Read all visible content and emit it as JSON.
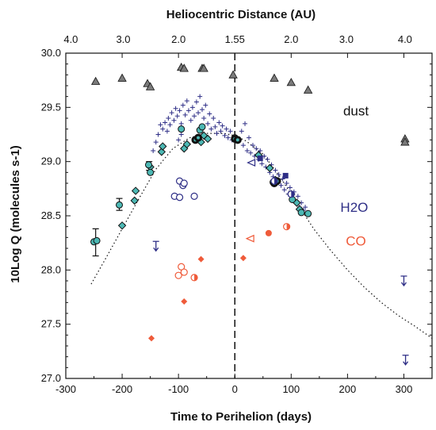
{
  "chart_data": {
    "type": "scatter",
    "xlabel": "Time to Perihelion (days)",
    "ylabel": "10Log Q (molecules s-1)",
    "top_xlabel": "Heliocentric Distance (AU)",
    "xlim": [
      -300,
      350
    ],
    "ylim": [
      27.0,
      30.0
    ],
    "x_ticks": [
      "-300",
      "-200",
      "-100",
      "0",
      "100",
      "200",
      "300"
    ],
    "y_ticks": [
      "27.0",
      "27.5",
      "28.0",
      "28.5",
      "29.0",
      "29.5",
      "30.0"
    ],
    "top_ticks": [
      {
        "label": "4.0",
        "x": -291
      },
      {
        "label": "3.0",
        "x": -198
      },
      {
        "label": "2.0",
        "x": -100
      },
      {
        "label": "1.55",
        "x": 0
      },
      {
        "label": "2.0",
        "x": 100
      },
      {
        "label": "3.0",
        "x": 198
      },
      {
        "label": "4.0",
        "x": 302
      }
    ],
    "perihelion_x": 0,
    "annotations": [
      {
        "text": "dust",
        "x": 215,
        "y": 29.47,
        "color": "#111111"
      },
      {
        "text": "H2O",
        "x": 212,
        "y": 28.58,
        "color": "#2e2e86"
      },
      {
        "text": "CO",
        "x": 215,
        "y": 28.27,
        "color": "#ef5b3a"
      }
    ],
    "colors": {
      "dust": "#7a7a7a",
      "h2o": "#2e2e86",
      "co": "#ef5b3a",
      "teal": "#4cb8b4",
      "dark_blue": "#1d3f7f"
    },
    "series": [
      {
        "name": "dust",
        "marker": "triangle",
        "points": [
          {
            "x": -247,
            "y": 29.74
          },
          {
            "x": -200,
            "y": 29.77
          },
          {
            "x": -155,
            "y": 29.72
          },
          {
            "x": -150,
            "y": 29.69
          },
          {
            "x": -95,
            "y": 29.87
          },
          {
            "x": -90,
            "y": 29.86
          },
          {
            "x": -58,
            "y": 29.86
          },
          {
            "x": -55,
            "y": 29.86
          },
          {
            "x": -3,
            "y": 29.8
          },
          {
            "x": 70,
            "y": 29.77
          },
          {
            "x": 100,
            "y": 29.73
          },
          {
            "x": 130,
            "y": 29.66
          },
          {
            "x": 302,
            "y": 29.21
          },
          {
            "x": 302,
            "y": 29.18
          }
        ]
      },
      {
        "name": "",
        "marker": "plus",
        "points": [
          {
            "x": -132,
            "y": 29.34
          },
          {
            "x": -128,
            "y": 29.3
          },
          {
            "x": -124,
            "y": 29.36
          },
          {
            "x": -120,
            "y": 29.28
          },
          {
            "x": -118,
            "y": 29.4
          },
          {
            "x": -115,
            "y": 29.34
          },
          {
            "x": -112,
            "y": 29.45
          },
          {
            "x": -108,
            "y": 29.38
          },
          {
            "x": -105,
            "y": 29.49
          },
          {
            "x": -102,
            "y": 29.42
          },
          {
            "x": -98,
            "y": 29.47
          },
          {
            "x": -95,
            "y": 29.35
          },
          {
            "x": -92,
            "y": 29.52
          },
          {
            "x": -88,
            "y": 29.43
          },
          {
            "x": -85,
            "y": 29.56
          },
          {
            "x": -82,
            "y": 29.47
          },
          {
            "x": -78,
            "y": 29.38
          },
          {
            "x": -75,
            "y": 29.5
          },
          {
            "x": -72,
            "y": 29.42
          },
          {
            "x": -68,
            "y": 29.55
          },
          {
            "x": -65,
            "y": 29.45
          },
          {
            "x": -62,
            "y": 29.6
          },
          {
            "x": -58,
            "y": 29.48
          },
          {
            "x": -55,
            "y": 29.4
          },
          {
            "x": -52,
            "y": 29.52
          },
          {
            "x": -48,
            "y": 29.35
          },
          {
            "x": -45,
            "y": 29.44
          },
          {
            "x": -42,
            "y": 29.3
          },
          {
            "x": -38,
            "y": 29.4
          },
          {
            "x": -35,
            "y": 29.32
          },
          {
            "x": -32,
            "y": 29.26
          },
          {
            "x": -28,
            "y": 29.36
          },
          {
            "x": -25,
            "y": 29.28
          },
          {
            "x": -22,
            "y": 29.33
          },
          {
            "x": -18,
            "y": 29.24
          },
          {
            "x": -15,
            "y": 29.3
          },
          {
            "x": -12,
            "y": 29.22
          },
          {
            "x": -8,
            "y": 29.28
          },
          {
            "x": -5,
            "y": 29.2
          },
          {
            "x": -140,
            "y": 29.18
          },
          {
            "x": -136,
            "y": 29.25
          },
          {
            "x": -145,
            "y": 29.1
          },
          {
            "x": -100,
            "y": 29.2
          },
          {
            "x": -95,
            "y": 29.25
          },
          {
            "x": 8,
            "y": 29.2
          },
          {
            "x": 12,
            "y": 29.28
          },
          {
            "x": 15,
            "y": 29.15
          },
          {
            "x": 18,
            "y": 29.35
          },
          {
            "x": 22,
            "y": 29.1
          },
          {
            "x": 25,
            "y": 29.22
          },
          {
            "x": 28,
            "y": 29.08
          },
          {
            "x": 32,
            "y": 29.15
          },
          {
            "x": 35,
            "y": 29.05
          },
          {
            "x": 38,
            "y": 29.12
          },
          {
            "x": 42,
            "y": 29.02
          },
          {
            "x": 45,
            "y": 29.1
          },
          {
            "x": 48,
            "y": 28.98
          },
          {
            "x": 52,
            "y": 29.05
          },
          {
            "x": 55,
            "y": 28.95
          },
          {
            "x": 58,
            "y": 29.02
          },
          {
            "x": 62,
            "y": 28.9
          },
          {
            "x": 65,
            "y": 28.97
          },
          {
            "x": 68,
            "y": 28.86
          },
          {
            "x": 72,
            "y": 28.92
          },
          {
            "x": 75,
            "y": 28.82
          },
          {
            "x": 78,
            "y": 28.88
          },
          {
            "x": 82,
            "y": 28.78
          },
          {
            "x": 85,
            "y": 28.84
          },
          {
            "x": 88,
            "y": 28.74
          },
          {
            "x": 92,
            "y": 28.8
          },
          {
            "x": 95,
            "y": 28.7
          },
          {
            "x": 98,
            "y": 28.76
          },
          {
            "x": 102,
            "y": 28.66
          },
          {
            "x": 105,
            "y": 28.72
          },
          {
            "x": 108,
            "y": 28.62
          },
          {
            "x": 112,
            "y": 28.68
          },
          {
            "x": 115,
            "y": 28.58
          },
          {
            "x": 118,
            "y": 28.62
          },
          {
            "x": 122,
            "y": 28.55
          },
          {
            "x": 125,
            "y": 28.58
          },
          {
            "x": 128,
            "y": 28.52
          }
        ]
      },
      {
        "name": "",
        "marker": "diamond",
        "points": [
          {
            "x": -200,
            "y": 28.41
          },
          {
            "x": -178,
            "y": 28.64
          },
          {
            "x": -176,
            "y": 28.73
          },
          {
            "x": -150,
            "y": 28.95
          },
          {
            "x": -130,
            "y": 29.09
          },
          {
            "x": -128,
            "y": 29.14
          },
          {
            "x": -90,
            "y": 29.12
          },
          {
            "x": -85,
            "y": 29.16
          },
          {
            "x": -60,
            "y": 29.18
          },
          {
            "x": -55,
            "y": 29.24
          },
          {
            "x": -48,
            "y": 29.21
          },
          {
            "x": 42,
            "y": 29.06
          },
          {
            "x": 62,
            "y": 28.94
          },
          {
            "x": 72,
            "y": 28.83
          },
          {
            "x": 100,
            "y": 28.7
          },
          {
            "x": 110,
            "y": 28.62
          },
          {
            "x": 115,
            "y": 28.56
          }
        ]
      },
      {
        "name": "",
        "marker": "circle-teal",
        "points": [
          {
            "x": -250,
            "y": 28.26
          },
          {
            "x": -245,
            "y": 28.27
          },
          {
            "x": -205,
            "y": 28.6
          },
          {
            "x": -153,
            "y": 28.97
          },
          {
            "x": -150,
            "y": 28.9
          },
          {
            "x": -95,
            "y": 29.3
          },
          {
            "x": -62,
            "y": 29.29
          },
          {
            "x": -58,
            "y": 29.32
          },
          {
            "x": 0,
            "y": 29.22
          },
          {
            "x": 68,
            "y": 28.81
          },
          {
            "x": 102,
            "y": 28.65
          },
          {
            "x": 118,
            "y": 28.53
          },
          {
            "x": 130,
            "y": 28.52
          }
        ]
      },
      {
        "name": "",
        "marker": "circle-black",
        "points": [
          {
            "x": -70,
            "y": 29.2
          },
          {
            "x": -65,
            "y": 29.22
          },
          {
            "x": 0,
            "y": 29.21
          },
          {
            "x": 5,
            "y": 29.2
          },
          {
            "x": 70,
            "y": 28.8
          },
          {
            "x": 75,
            "y": 28.82
          }
        ]
      },
      {
        "name": "",
        "marker": "circle-open",
        "points": [
          {
            "x": -98,
            "y": 28.82
          },
          {
            "x": -92,
            "y": 28.78
          },
          {
            "x": -90,
            "y": 28.8
          },
          {
            "x": -107,
            "y": 28.68
          },
          {
            "x": -98,
            "y": 28.67
          },
          {
            "x": -72,
            "y": 28.68
          }
        ]
      },
      {
        "name": "",
        "marker": "square",
        "points": [
          {
            "x": 45,
            "y": 29.03
          },
          {
            "x": 90,
            "y": 28.87
          }
        ]
      },
      {
        "name": "",
        "marker": "triangle-left",
        "points": [
          {
            "x": 30,
            "y": 28.99
          }
        ]
      },
      {
        "name": "",
        "marker": "half-circle",
        "points": [
          {
            "x": 70,
            "y": 28.82
          },
          {
            "x": 100,
            "y": 28.7
          }
        ]
      },
      {
        "name": "",
        "marker": "upper-limit",
        "points": [
          {
            "x": -140,
            "y": 28.22
          },
          {
            "x": 300,
            "y": 27.9
          },
          {
            "x": 303,
            "y": 27.17
          }
        ]
      },
      {
        "name": "",
        "marker": "circle-open",
        "points": [
          {
            "x": -95,
            "y": 28.03
          },
          {
            "x": -90,
            "y": 27.98
          },
          {
            "x": -100,
            "y": 27.95
          }
        ]
      },
      {
        "name": "",
        "marker": "diamond",
        "points": [
          {
            "x": -60,
            "y": 28.1
          },
          {
            "x": -90,
            "y": 27.71
          },
          {
            "x": -148,
            "y": 27.37
          },
          {
            "x": 15,
            "y": 28.11
          }
        ]
      },
      {
        "name": "",
        "marker": "half-circle",
        "points": [
          {
            "x": -72,
            "y": 27.93
          },
          {
            "x": 92,
            "y": 28.4
          }
        ]
      },
      {
        "name": "",
        "marker": "circle-filled",
        "points": [
          {
            "x": 60,
            "y": 28.34
          }
        ]
      },
      {
        "name": "",
        "marker": "triangle-left",
        "points": [
          {
            "x": 28,
            "y": 28.29
          }
        ]
      }
    ],
    "error_bars": [
      {
        "x": -247,
        "y": 28.26,
        "low": 28.13,
        "high": 28.38
      },
      {
        "x": -205,
        "y": 28.6,
        "low": 28.55,
        "high": 28.66
      },
      {
        "x": -152,
        "y": 28.97,
        "low": 28.92,
        "high": 29.0
      }
    ],
    "model_curve": [
      {
        "x": -255,
        "y": 27.87
      },
      {
        "x": -230,
        "y": 28.1
      },
      {
        "x": -200,
        "y": 28.38
      },
      {
        "x": -170,
        "y": 28.66
      },
      {
        "x": -140,
        "y": 28.93
      },
      {
        "x": -110,
        "y": 29.12
      },
      {
        "x": -80,
        "y": 29.22
      },
      {
        "x": -50,
        "y": 29.26
      },
      {
        "x": -20,
        "y": 29.26
      },
      {
        "x": 0,
        "y": 29.24
      },
      {
        "x": 20,
        "y": 29.19
      },
      {
        "x": 50,
        "y": 29.07
      },
      {
        "x": 80,
        "y": 28.86
      },
      {
        "x": 110,
        "y": 28.62
      },
      {
        "x": 140,
        "y": 28.38
      },
      {
        "x": 170,
        "y": 28.18
      },
      {
        "x": 200,
        "y": 28.0
      },
      {
        "x": 230,
        "y": 27.84
      },
      {
        "x": 260,
        "y": 27.7
      },
      {
        "x": 290,
        "y": 27.58
      },
      {
        "x": 320,
        "y": 27.48
      },
      {
        "x": 350,
        "y": 27.37
      }
    ]
  }
}
